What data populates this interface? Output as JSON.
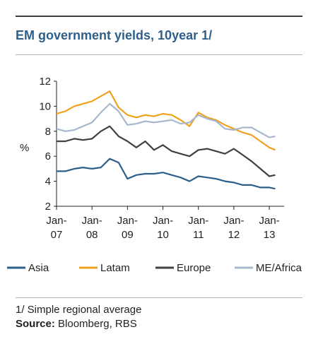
{
  "header": {
    "title": "EM government yields, 10year 1/"
  },
  "footer": {
    "footnote": "1/ Simple regional average",
    "source_label": "Source:",
    "source_text": "Bloomberg, RBS"
  },
  "chart_data": {
    "type": "line",
    "ylabel": "%",
    "xlabel": "",
    "ylim": [
      2,
      12
    ],
    "yticks": [
      "2",
      "4",
      "6",
      "8",
      "10",
      "12"
    ],
    "xlim": [
      "2007-01",
      "2013-06"
    ],
    "xticks": [
      {
        "at": "2007-01",
        "line1": "Jan-",
        "line2": "07"
      },
      {
        "at": "2008-01",
        "line1": "Jan-",
        "line2": "08"
      },
      {
        "at": "2009-01",
        "line1": "Jan-",
        "line2": "09"
      },
      {
        "at": "2010-01",
        "line1": "Jan-",
        "line2": "10"
      },
      {
        "at": "2011-01",
        "line1": "Jan-",
        "line2": "11"
      },
      {
        "at": "2012-01",
        "line1": "Jan-",
        "line2": "12"
      },
      {
        "at": "2013-01",
        "line1": "Jan-",
        "line2": "13"
      }
    ],
    "grid": false,
    "legend_position": "bottom",
    "x": [
      "2007-01",
      "2007-04",
      "2007-07",
      "2007-10",
      "2008-01",
      "2008-04",
      "2008-07",
      "2008-10",
      "2009-01",
      "2009-04",
      "2009-07",
      "2009-10",
      "2010-01",
      "2010-04",
      "2010-07",
      "2010-10",
      "2011-01",
      "2011-04",
      "2011-07",
      "2011-10",
      "2012-01",
      "2012-04",
      "2012-07",
      "2012-10",
      "2013-01",
      "2013-03"
    ],
    "series": [
      {
        "name": "Asia",
        "color": "#2e5f8a",
        "values": [
          4.8,
          4.8,
          5.0,
          5.1,
          5.0,
          5.1,
          5.8,
          5.5,
          4.2,
          4.5,
          4.6,
          4.6,
          4.7,
          4.5,
          4.3,
          4.0,
          4.4,
          4.3,
          4.2,
          4.0,
          3.9,
          3.7,
          3.7,
          3.5,
          3.5,
          3.4
        ]
      },
      {
        "name": "Latam",
        "color": "#f0a11e",
        "values": [
          9.4,
          9.6,
          10.0,
          10.2,
          10.4,
          10.8,
          11.2,
          9.9,
          9.3,
          9.1,
          9.3,
          9.2,
          9.4,
          9.3,
          8.9,
          8.4,
          9.5,
          9.1,
          8.9,
          8.5,
          8.2,
          7.9,
          7.7,
          7.2,
          6.7,
          6.5
        ]
      },
      {
        "name": "Europe",
        "color": "#404040",
        "values": [
          7.2,
          7.2,
          7.4,
          7.3,
          7.4,
          8.0,
          8.4,
          7.6,
          7.2,
          6.7,
          7.2,
          6.5,
          6.9,
          6.4,
          6.2,
          6.0,
          6.5,
          6.6,
          6.4,
          6.2,
          6.6,
          6.1,
          5.6,
          5.0,
          4.4,
          4.5
        ]
      },
      {
        "name": "ME/Africa",
        "color": "#a8b8cc",
        "values": [
          8.2,
          8.0,
          8.1,
          8.4,
          8.7,
          9.5,
          10.2,
          9.6,
          8.5,
          8.6,
          8.8,
          8.7,
          8.8,
          8.9,
          8.6,
          8.7,
          9.3,
          9.0,
          8.8,
          8.2,
          8.1,
          8.3,
          8.3,
          7.9,
          7.5,
          7.6
        ]
      }
    ]
  }
}
